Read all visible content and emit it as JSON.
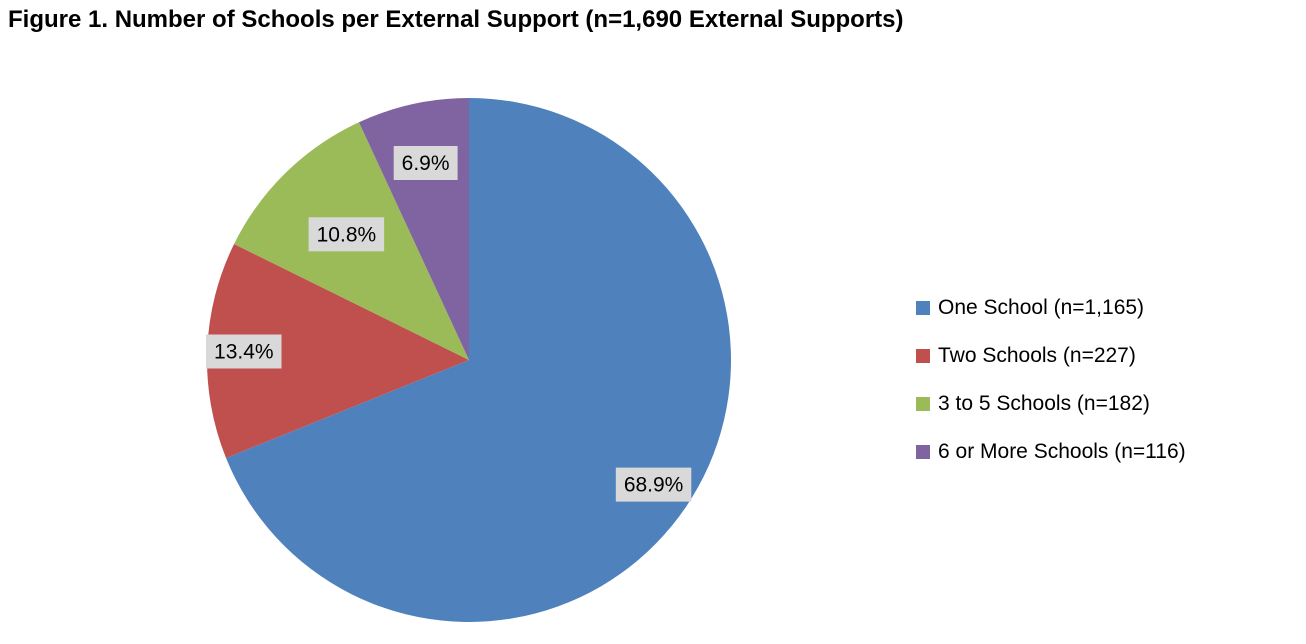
{
  "title": "Figure 1. Number of Schools per External Support (n=1,690 External Supports)",
  "chart_data": {
    "type": "pie",
    "title": "Figure 1. Number of Schools per External Support (n=1,690 External Supports)",
    "legend_position": "right",
    "slices": [
      {
        "name": "One School (n=1,165)",
        "value": 68.9,
        "label": "68.9%",
        "color": "#4f81bd"
      },
      {
        "name": "Two Schools (n=227)",
        "value": 13.4,
        "label": "13.4%",
        "color": "#c0504d"
      },
      {
        "name": "3 to 5 Schools (n=182)",
        "value": 10.8,
        "label": "10.8%",
        "color": "#9bbb59"
      },
      {
        "name": "6 or More Schools (n=116)",
        "value": 6.9,
        "label": "6.9%",
        "color": "#8064a2"
      }
    ]
  }
}
